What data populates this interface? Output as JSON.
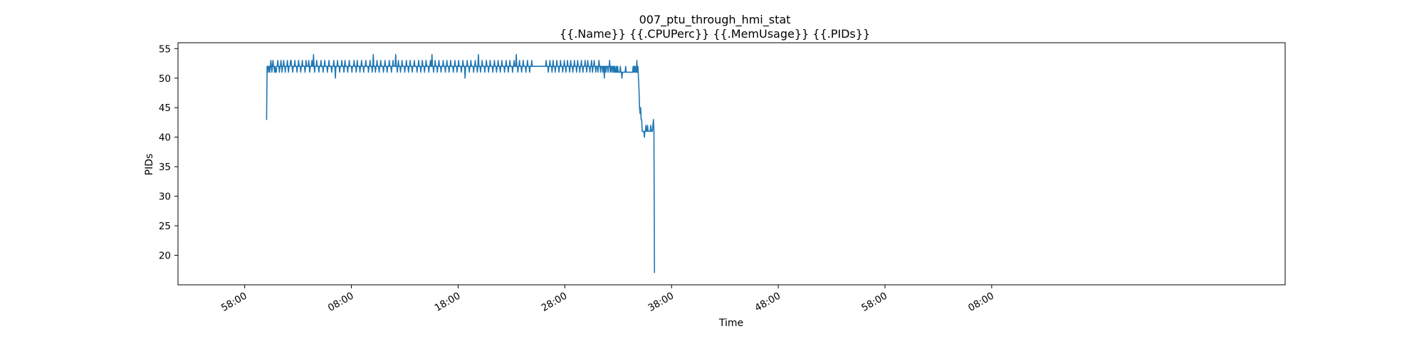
{
  "chart_data": {
    "type": "line",
    "title_line1": "007_ptu_through_hmi_stat",
    "title_line2": "{{.Name}} {{.CPUPerc}} {{.MemUsage}}  {{.PIDs}}",
    "xlabel": "Time",
    "ylabel": "PIDs",
    "x_unit": "minutes",
    "xlim": [
      -12.5,
      195
    ],
    "ylim": [
      15,
      56
    ],
    "grid": false,
    "line_color": "#1f77b4",
    "x_ticks": [
      {
        "value": 0,
        "label": "58:00"
      },
      {
        "value": 20,
        "label": "08:00"
      },
      {
        "value": 40,
        "label": "18:00"
      },
      {
        "value": 60,
        "label": "28:00"
      },
      {
        "value": 80,
        "label": "38:00"
      },
      {
        "value": 100,
        "label": "48:00"
      },
      {
        "value": 120,
        "label": "58:00"
      },
      {
        "value": 140,
        "label": "08:00"
      }
    ],
    "y_ticks": [
      {
        "value": 20,
        "label": "20"
      },
      {
        "value": 25,
        "label": "25"
      },
      {
        "value": 30,
        "label": "30"
      },
      {
        "value": 35,
        "label": "35"
      },
      {
        "value": 40,
        "label": "40"
      },
      {
        "value": 45,
        "label": "45"
      },
      {
        "value": 50,
        "label": "50"
      },
      {
        "value": 55,
        "label": "55"
      }
    ],
    "series": [
      {
        "name": "PIDs",
        "x_start": 4.0,
        "x_step": 0.1,
        "values": [
          43,
          43,
          52,
          52,
          51,
          52,
          52,
          51,
          52,
          53,
          52,
          51,
          52,
          53,
          52,
          52,
          51,
          52,
          51,
          51,
          52,
          52,
          53,
          52,
          52,
          51,
          52,
          52,
          53,
          52,
          51,
          52,
          52,
          53,
          52,
          52,
          51,
          52,
          52,
          52,
          53,
          52,
          51,
          52,
          52,
          52,
          53,
          53,
          52,
          52,
          51,
          52,
          52,
          52,
          53,
          52,
          52,
          52,
          51,
          52,
          52,
          53,
          52,
          52,
          52,
          51,
          52,
          52,
          53,
          52,
          52,
          52,
          52,
          51,
          52,
          53,
          52,
          52,
          52,
          52,
          53,
          52,
          51,
          52,
          52,
          52,
          53,
          52,
          52,
          54,
          52,
          51,
          52,
          52,
          52,
          53,
          52,
          52,
          52,
          51,
          52,
          52,
          52,
          53,
          52,
          52,
          52,
          51,
          52,
          52,
          53,
          52,
          52,
          52,
          52,
          51,
          52,
          52,
          53,
          52,
          52,
          52,
          52,
          51,
          52,
          52,
          52,
          53,
          52,
          52,
          50,
          52,
          52,
          52,
          53,
          52,
          52,
          52,
          51,
          52,
          52,
          52,
          53,
          52,
          52,
          52,
          51,
          52,
          53,
          52,
          52,
          52,
          52,
          51,
          52,
          52,
          53,
          52,
          52,
          52,
          52,
          51,
          52,
          52,
          52,
          53,
          52,
          52,
          52,
          51,
          52,
          53,
          52,
          52,
          52,
          52,
          51,
          52,
          52,
          53,
          52,
          52,
          52,
          51,
          52,
          52,
          52,
          53,
          52,
          52,
          52,
          52,
          51,
          52,
          52,
          53,
          52,
          52,
          52,
          51,
          52,
          54,
          52,
          52,
          52,
          51,
          52,
          52,
          53,
          52,
          52,
          52,
          51,
          52,
          52,
          53,
          52,
          52,
          52,
          52,
          51,
          52,
          52,
          53,
          52,
          52,
          52,
          51,
          52,
          52,
          52,
          53,
          52,
          52,
          52,
          51,
          52,
          52,
          53,
          52,
          52,
          52,
          52,
          54,
          52,
          52,
          51,
          52,
          53,
          52,
          52,
          52,
          51,
          52,
          52,
          53,
          52,
          52,
          52,
          52,
          51,
          52,
          52,
          53,
          52,
          52,
          52,
          51,
          52,
          52,
          53,
          52,
          52,
          52,
          51,
          52,
          52,
          52,
          53,
          52,
          52,
          52,
          52,
          51,
          52,
          52,
          53,
          52,
          52,
          52,
          51,
          52,
          52,
          53,
          52,
          52,
          52,
          51,
          52,
          52,
          53,
          52,
          52,
          52,
          52,
          51,
          52,
          52,
          53,
          52,
          52,
          54,
          52,
          52,
          51,
          52,
          52,
          53,
          52,
          52,
          52,
          51,
          52,
          52,
          53,
          52,
          52,
          52,
          51,
          52,
          52,
          52,
          53,
          52,
          52,
          52,
          51,
          52,
          52,
          53,
          52,
          52,
          52,
          51,
          52,
          52,
          53,
          52,
          52,
          52,
          52,
          51,
          52,
          52,
          53,
          52,
          52,
          52,
          51,
          52,
          52,
          53,
          52,
          52,
          52,
          52,
          51,
          52,
          52,
          53,
          52,
          52,
          52,
          50,
          52,
          52,
          52,
          53,
          52,
          52,
          52,
          51,
          52,
          52,
          53,
          52,
          52,
          52,
          52,
          51,
          52,
          52,
          53,
          52,
          52,
          52,
          51,
          52,
          54,
          52,
          52,
          52,
          51,
          52,
          52,
          53,
          52,
          52,
          52,
          52,
          51,
          52,
          52,
          53,
          52,
          52,
          52,
          51,
          52,
          52,
          53,
          52,
          52,
          52,
          52,
          51,
          52,
          52,
          53,
          52,
          52,
          52,
          51,
          52,
          52,
          53,
          52,
          52,
          52,
          51,
          52,
          52,
          53,
          52,
          52,
          52,
          52,
          51,
          52,
          52,
          53,
          52,
          52,
          52,
          51,
          52,
          52,
          53,
          52,
          52,
          52,
          52,
          51,
          52,
          52,
          53,
          52,
          52,
          52,
          54,
          52,
          52,
          51,
          52,
          52,
          53,
          52,
          52,
          52,
          51,
          52,
          52,
          53,
          52,
          52,
          52,
          52,
          51,
          52,
          52,
          53,
          52,
          52,
          52,
          51,
          52,
          52,
          52,
          53,
          52,
          52,
          52,
          52,
          52,
          52,
          52,
          52,
          52,
          52,
          52,
          52,
          52,
          52,
          52,
          52,
          52,
          52,
          52,
          52,
          52,
          52,
          52,
          52,
          52,
          52,
          53,
          52,
          52,
          52,
          51,
          52,
          52,
          53,
          52,
          52,
          52,
          51,
          52,
          53,
          52,
          52,
          52,
          51,
          52,
          52,
          53,
          52,
          52,
          52,
          51,
          52,
          52,
          53,
          52,
          52,
          52,
          51,
          52,
          52,
          53,
          52,
          52,
          51,
          52,
          52,
          53,
          52,
          52,
          52,
          51,
          52,
          53,
          52,
          52,
          52,
          51,
          52,
          52,
          53,
          52,
          52,
          52,
          51,
          52,
          53,
          52,
          52,
          52,
          51,
          52,
          52,
          53,
          52,
          52,
          51,
          52,
          52,
          52,
          53,
          52,
          52,
          51,
          52,
          53,
          52,
          52,
          52,
          51,
          52,
          52,
          53,
          52,
          51,
          52,
          52,
          53,
          52,
          52,
          51,
          52,
          52,
          52,
          51,
          52,
          53,
          52,
          52,
          51,
          52,
          52,
          52,
          51,
          52,
          52,
          50,
          52,
          52,
          51,
          52,
          52,
          52,
          51,
          52,
          52,
          53,
          51,
          52,
          52,
          51,
          52,
          52,
          51,
          52,
          51,
          52,
          51,
          51,
          52,
          51,
          52,
          51,
          51,
          51,
          51,
          52,
          51,
          51,
          50,
          51,
          51,
          51,
          51,
          51,
          51,
          52,
          51,
          51,
          51,
          51,
          51,
          51,
          51,
          51,
          51,
          51,
          51,
          51,
          51,
          52,
          51,
          52,
          51,
          52,
          51,
          51,
          53,
          51,
          52,
          50,
          48,
          45,
          44,
          45,
          43,
          43,
          41,
          41,
          41,
          41,
          40,
          41,
          41,
          42,
          41,
          41,
          42,
          41,
          41,
          41,
          41,
          41,
          42,
          41,
          41,
          41,
          42,
          43,
          41,
          17
        ]
      }
    ]
  }
}
